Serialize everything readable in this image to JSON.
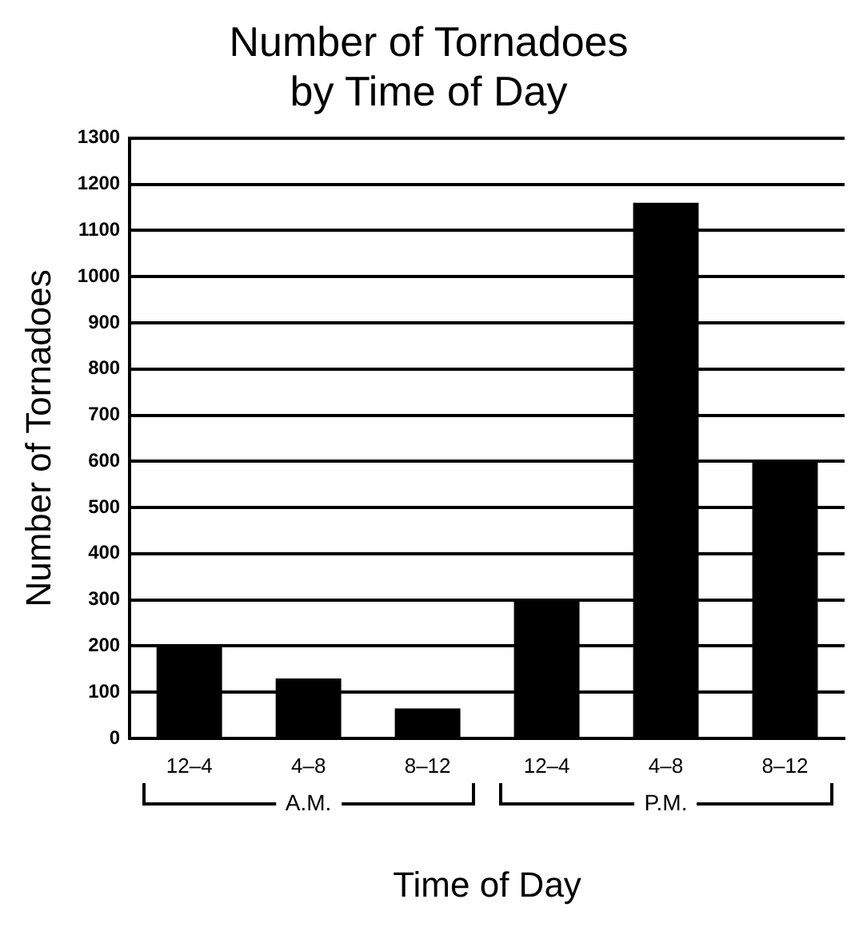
{
  "chart_data": {
    "type": "bar",
    "title": "Number of Tornadoes by Time of Day",
    "xlabel": "Time of Day",
    "ylabel": "Number of Tornadoes",
    "categories": [
      "12–4",
      "4–8",
      "8–12",
      "12–4",
      "4–8",
      "8–12"
    ],
    "values": [
      200,
      130,
      65,
      300,
      1160,
      600
    ],
    "color": "#000000",
    "ylim": [
      0,
      1300
    ],
    "yticks": [
      0,
      100,
      200,
      300,
      400,
      500,
      600,
      700,
      800,
      900,
      1000,
      1100,
      1200,
      1300
    ],
    "grid": "y",
    "annotations": [
      "A.M.",
      "P.M."
    ]
  }
}
